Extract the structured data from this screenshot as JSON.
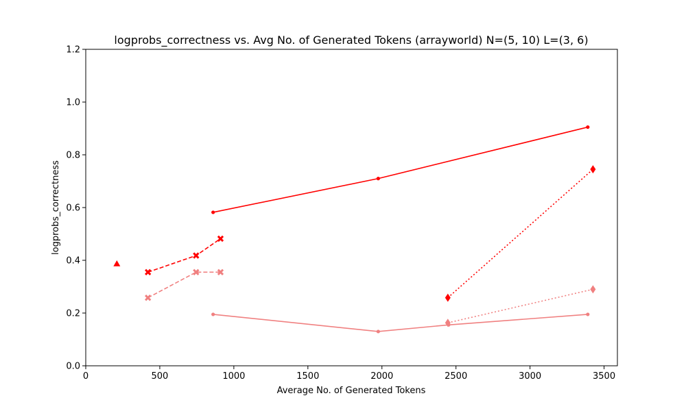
{
  "chart_data": {
    "type": "line",
    "title": "logprobs_correctness vs. Avg No. of Generated Tokens (arrayworld) N=(5, 10) L=(3, 6)",
    "xlabel": "Average No. of Generated Tokens",
    "ylabel": "logprobs_correctness",
    "xlim": [
      0,
      3590
    ],
    "ylim": [
      0,
      1.2
    ],
    "xticks": [
      0,
      500,
      1000,
      1500,
      2000,
      2500,
      3000,
      3500
    ],
    "yticks": [
      0.0,
      0.2,
      0.4,
      0.6,
      0.8,
      1.0,
      1.2
    ],
    "xtick_labels": [
      "0",
      "500",
      "1000",
      "1500",
      "2000",
      "2500",
      "3000",
      "3500"
    ],
    "ytick_labels": [
      "0.0",
      "0.2",
      "0.4",
      "0.6",
      "0.8",
      "1.0",
      "1.2"
    ],
    "grid": false,
    "series": [
      {
        "x": [
          860,
          1975,
          3390
        ],
        "y": [
          0.582,
          0.71,
          0.905
        ],
        "color": "#ff0000",
        "linestyle": "solid",
        "marker": "dot"
      },
      {
        "x": [
          860,
          1975,
          2450,
          3390
        ],
        "y": [
          0.195,
          0.13,
          0.155,
          0.195
        ],
        "color": "#f08080",
        "linestyle": "solid",
        "marker": "dot"
      },
      {
        "x": [
          210
        ],
        "y": [
          0.387
        ],
        "color": "#ff0000",
        "linestyle": "none",
        "marker": "triangle"
      },
      {
        "x": [
          420,
          745,
          910
        ],
        "y": [
          0.355,
          0.418,
          0.482
        ],
        "color": "#ff0000",
        "linestyle": "dashed",
        "marker": "x"
      },
      {
        "x": [
          420,
          745,
          910
        ],
        "y": [
          0.258,
          0.355,
          0.355
        ],
        "color": "#f08080",
        "linestyle": "dashed",
        "marker": "x"
      },
      {
        "x": [
          2445,
          3425
        ],
        "y": [
          0.258,
          0.745
        ],
        "color": "#ff0000",
        "linestyle": "dotted",
        "marker": "diamond"
      },
      {
        "x": [
          2445,
          3425
        ],
        "y": [
          0.163,
          0.29
        ],
        "color": "#f08080",
        "linestyle": "dotted",
        "marker": "diamond"
      }
    ]
  }
}
